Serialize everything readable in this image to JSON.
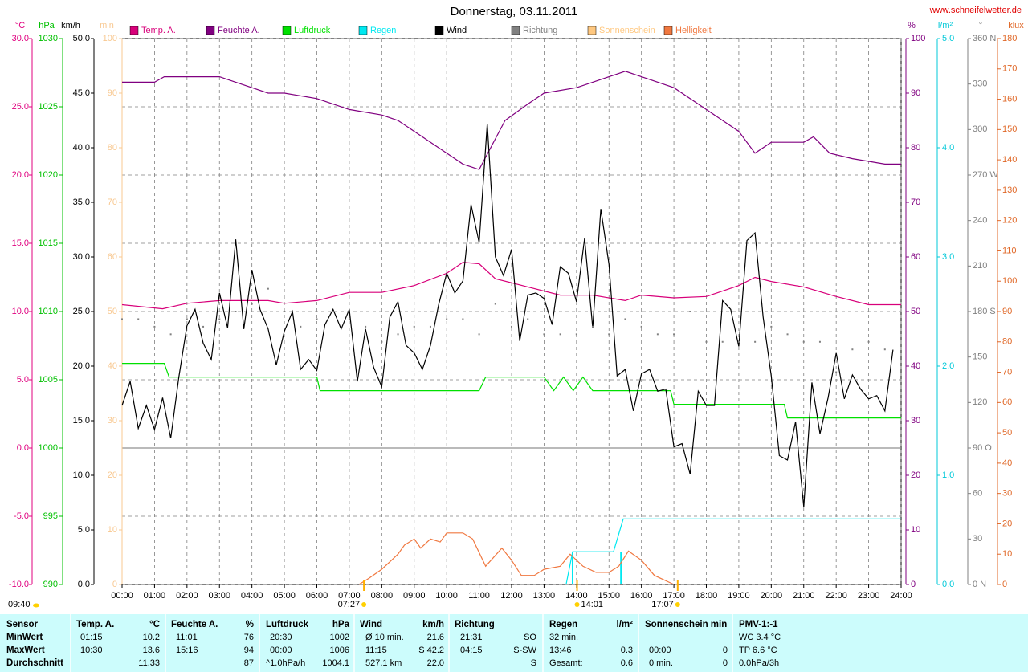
{
  "site": "www.schneifelwetter.de",
  "updated": "09:40",
  "chart_data": {
    "type": "line",
    "title": "Donnerstag, 03.11.2011",
    "grid": true,
    "xlim": [
      0,
      24
    ],
    "xticks": [
      {
        "value": 0,
        "label": "00:00"
      },
      {
        "value": 1,
        "label": "01:00"
      },
      {
        "value": 2,
        "label": "02:00"
      },
      {
        "value": 3,
        "label": "03:00"
      },
      {
        "value": 4,
        "label": "04:00"
      },
      {
        "value": 5,
        "label": "05:00"
      },
      {
        "value": 6,
        "label": "06:00"
      },
      {
        "value": 7,
        "label": "07:00"
      },
      {
        "value": 8,
        "label": "08:00"
      },
      {
        "value": 9,
        "label": "09:00"
      },
      {
        "value": 10,
        "label": "10:00"
      },
      {
        "value": 11,
        "label": "11:00"
      },
      {
        "value": 12,
        "label": "12:00"
      },
      {
        "value": 13,
        "label": "13:00"
      },
      {
        "value": 14,
        "label": "14:00"
      },
      {
        "value": 15,
        "label": "15:00"
      },
      {
        "value": 16,
        "label": "16:00"
      },
      {
        "value": 17,
        "label": "17:00"
      },
      {
        "value": 18,
        "label": "18:00"
      },
      {
        "value": 19,
        "label": "19:00"
      },
      {
        "value": 20,
        "label": "20:00"
      },
      {
        "value": 21,
        "label": "21:00"
      },
      {
        "value": 22,
        "label": "22:00"
      },
      {
        "value": 23,
        "label": "23:00"
      },
      {
        "value": 24,
        "label": "24:00"
      }
    ],
    "axes": {
      "y": {
        "label": "°C",
        "color": "#e0007f",
        "lim": [
          -10,
          30
        ],
        "ticks": [
          {
            "value": -10,
            "label": "-10.0"
          },
          {
            "value": -5,
            "label": "-5.0"
          },
          {
            "value": 0,
            "label": "0.0"
          },
          {
            "value": 5,
            "label": "5.0"
          },
          {
            "value": 10,
            "label": "10.0"
          },
          {
            "value": 15,
            "label": "15.0"
          },
          {
            "value": 20,
            "label": "20.0"
          },
          {
            "value": 25,
            "label": "25.0"
          },
          {
            "value": 30,
            "label": "30.0"
          }
        ]
      },
      "y2": {
        "label": "hPa",
        "color": "#00c000",
        "lim": [
          990,
          1030
        ],
        "ticks": [
          990,
          995,
          1000,
          1005,
          1010,
          1015,
          1020,
          1025,
          1030
        ]
      },
      "y3": {
        "label": "km/h",
        "color": "#000000",
        "lim": [
          0,
          50
        ],
        "ticks": [
          {
            "value": 0,
            "label": "0.0"
          },
          {
            "value": 5,
            "label": "5.0"
          },
          {
            "value": 10,
            "label": "10.0"
          },
          {
            "value": 15,
            "label": "15.0"
          },
          {
            "value": 20,
            "label": "20.0"
          },
          {
            "value": 25,
            "label": "25.0"
          },
          {
            "value": 30,
            "label": "30.0"
          },
          {
            "value": 35,
            "label": "35.0"
          },
          {
            "value": 40,
            "label": "40.0"
          },
          {
            "value": 45,
            "label": "45.0"
          },
          {
            "value": 50,
            "label": "50.0"
          }
        ]
      },
      "y4": {
        "label": "min",
        "color": "#f8c890",
        "lim": [
          0,
          100
        ],
        "ticks": [
          0,
          10,
          20,
          30,
          40,
          50,
          60,
          70,
          80,
          90,
          100
        ]
      },
      "y5": {
        "label": "%",
        "color": "#800080",
        "lim": [
          0,
          100
        ],
        "ticks": [
          0,
          10,
          20,
          30,
          40,
          50,
          60,
          70,
          80,
          90,
          100
        ]
      },
      "y6": {
        "label": "l/m²",
        "color": "#00c8d8",
        "lim": [
          0,
          5
        ],
        "ticks": [
          {
            "value": 0,
            "label": "0.0"
          },
          {
            "value": 1,
            "label": "1.0"
          },
          {
            "value": 2,
            "label": "2.0"
          },
          {
            "value": 3,
            "label": "3.0"
          },
          {
            "value": 4,
            "label": "4.0"
          },
          {
            "value": 5,
            "label": "5.0"
          }
        ]
      },
      "y7": {
        "label": "°",
        "color": "#808080",
        "lim": [
          0,
          360
        ],
        "ticks": [
          {
            "value": 0,
            "label": "0 N"
          },
          30,
          60,
          {
            "value": 90,
            "label": "90 O"
          },
          120,
          150,
          {
            "value": 180,
            "label": "180 S"
          },
          210,
          240,
          {
            "value": 270,
            "label": "270 W"
          },
          300,
          330,
          {
            "value": 360,
            "label": "360 N"
          }
        ]
      },
      "y8": {
        "label": "klux",
        "color": "#e06828",
        "lim": [
          0,
          180
        ],
        "ticks": [
          0,
          10,
          20,
          30,
          40,
          50,
          60,
          70,
          80,
          90,
          100,
          110,
          120,
          130,
          140,
          150,
          160,
          170,
          180
        ]
      }
    },
    "series": [
      {
        "name": "Temp. A.",
        "color": "#d8007a",
        "axis": "y",
        "x": [
          0,
          1.25,
          2,
          3,
          4.5,
          5,
          6,
          7,
          8,
          9,
          10,
          10.5,
          11,
          11.5,
          12.5,
          13.5,
          14.5,
          15.5,
          16,
          17,
          18,
          19,
          19.5,
          20,
          21,
          22,
          23,
          24
        ],
        "values": [
          10.5,
          10.2,
          10.6,
          10.8,
          10.8,
          10.6,
          10.8,
          11.4,
          11.4,
          11.9,
          12.8,
          13.6,
          13.5,
          12.4,
          11.8,
          11.2,
          11.2,
          10.8,
          11.2,
          11.0,
          11.1,
          11.9,
          12.5,
          12.2,
          11.8,
          11.1,
          10.5,
          10.5
        ]
      },
      {
        "name": "Feuchte A.",
        "color": "#800080",
        "axis": "y5",
        "x": [
          0,
          1,
          1.3,
          3,
          3.5,
          4,
          4.5,
          5,
          6,
          7,
          8,
          8.5,
          9,
          10,
          10.5,
          11,
          11.8,
          12.5,
          13,
          14,
          14.5,
          15,
          15.5,
          16,
          17,
          18,
          19,
          19.5,
          20,
          21,
          21.3,
          21.8,
          22.5,
          23.5,
          24
        ],
        "values": [
          92,
          92,
          93,
          93,
          92,
          91,
          90,
          90,
          89,
          87,
          86,
          85,
          83,
          79,
          77,
          76,
          85,
          88,
          90,
          91,
          92,
          93,
          94,
          93,
          91,
          87,
          83,
          79,
          81,
          81,
          82,
          79,
          78,
          77,
          77
        ]
      },
      {
        "name": "Luftdruck",
        "color": "#00e000",
        "axis": "y2",
        "x": [
          0,
          1.3,
          1.45,
          6,
          6.1,
          11,
          11.2,
          13.0,
          13.3,
          13.6,
          13.9,
          14.2,
          14.5,
          16.9,
          17.0,
          20.4,
          20.5,
          24
        ],
        "values": [
          1006.2,
          1006.2,
          1005.2,
          1005.2,
          1004.2,
          1004.2,
          1005.2,
          1005.2,
          1004.2,
          1005.2,
          1004.2,
          1005.2,
          1004.2,
          1004.2,
          1003.2,
          1003.2,
          1002.2,
          1002.2
        ]
      },
      {
        "name": "Regen",
        "color": "#00e8f0",
        "axis": "y6",
        "x": [
          13.68,
          13.88,
          15.14,
          15.44,
          24
        ],
        "values": [
          0,
          0.3,
          0.3,
          0.6,
          0.6
        ],
        "bar_x": [
          13.88,
          15.37
        ],
        "bar_values": [
          0.3,
          0.3
        ]
      },
      {
        "name": "Wind",
        "color": "#000000",
        "axis": "y3",
        "x": [
          0,
          0.25,
          0.5,
          0.75,
          1,
          1.25,
          1.5,
          1.75,
          2,
          2.25,
          2.5,
          2.75,
          3,
          3.25,
          3.5,
          3.75,
          4,
          4.25,
          4.5,
          4.75,
          5,
          5.25,
          5.5,
          5.75,
          6,
          6.25,
          6.5,
          6.75,
          7,
          7.25,
          7.5,
          7.75,
          8,
          8.25,
          8.5,
          8.75,
          9,
          9.25,
          9.5,
          9.75,
          10,
          10.25,
          10.5,
          10.75,
          11,
          11.25,
          11.5,
          11.75,
          12,
          12.25,
          12.5,
          12.75,
          13,
          13.25,
          13.5,
          13.75,
          14,
          14.25,
          14.5,
          14.75,
          15,
          15.25,
          15.5,
          15.75,
          16,
          16.25,
          16.5,
          16.75,
          17,
          17.25,
          17.5,
          17.75,
          18,
          18.25,
          18.5,
          18.75,
          19,
          19.25,
          19.5,
          19.75,
          20,
          20.25,
          20.5,
          20.75,
          21,
          21.25,
          21.5,
          21.75,
          22,
          22.25,
          22.5,
          22.75,
          23,
          23.25,
          23.5,
          23.75
        ],
        "values": [
          16.4,
          18.6,
          14.3,
          16.4,
          14.2,
          17.1,
          13.4,
          19.0,
          23.7,
          25.2,
          22.1,
          20.6,
          26.7,
          23.5,
          31.6,
          23.4,
          28.8,
          25.2,
          23.4,
          20.1,
          23.2,
          25.0,
          19.7,
          20.6,
          19.6,
          23.8,
          25.2,
          23.4,
          25.2,
          18.6,
          23.4,
          19.9,
          18.1,
          24.5,
          25.9,
          21.9,
          21.2,
          19.7,
          21.9,
          25.6,
          28.5,
          26.7,
          27.8,
          34.8,
          31.3,
          42.2,
          30.0,
          28.3,
          30.7,
          22.3,
          26.5,
          26.7,
          26.2,
          23.8,
          29.1,
          28.5,
          25.9,
          31.7,
          23.5,
          34.4,
          29.3,
          19.1,
          19.7,
          15.9,
          19.3,
          19.7,
          17.7,
          17.9,
          12.6,
          12.9,
          10.1,
          17.7,
          16.4,
          16.4,
          26.0,
          25.2,
          21.8,
          31.5,
          32.2,
          24.5,
          19.1,
          11.8,
          11.4,
          14.9,
          7.1,
          18.5,
          13.8,
          17.1,
          21.2,
          17.0,
          19.2,
          17.9,
          17.0,
          17.3,
          15.9,
          21.5
        ]
      },
      {
        "name": "Richtung",
        "color": "#808080",
        "axis": "y7",
        "marker": "dots",
        "x": [
          0,
          0.5,
          1,
          1.5,
          2,
          2.5,
          3,
          3.5,
          4,
          4.5,
          5,
          5.5,
          6,
          6.5,
          7,
          7.5,
          8,
          8.5,
          9,
          9.5,
          10,
          10.5,
          11,
          11.5,
          12,
          12.5,
          13,
          13.5,
          14,
          14.5,
          15,
          15.5,
          16,
          16.5,
          17,
          17.5,
          18,
          18.5,
          19,
          19.5,
          20,
          20.5,
          21,
          21.5,
          22,
          22.5,
          23,
          23.5
        ],
        "values": [
          175,
          175,
          170,
          165,
          175,
          170,
          175,
          180,
          185,
          195,
          180,
          170,
          175,
          180,
          175,
          170,
          160,
          165,
          170,
          170,
          175,
          175,
          165,
          185,
          170,
          175,
          165,
          165,
          165,
          170,
          165,
          175,
          170,
          165,
          165,
          180,
          160,
          160,
          160,
          160,
          170,
          165,
          160,
          160,
          140,
          155,
          160,
          155
        ]
      },
      {
        "name": "Sonnenschein",
        "color": "#ffc880",
        "axis": "y4",
        "x": [],
        "values": []
      },
      {
        "name": "Helligkeit",
        "color": "#f07840",
        "axis": "y8",
        "x": [
          7.3,
          7.6,
          8,
          8.3,
          8.5,
          8.7,
          9,
          9.2,
          9.5,
          9.8,
          10,
          10.5,
          10.8,
          11.2,
          11.7,
          12,
          12.3,
          12.7,
          13,
          13.5,
          13.8,
          14.2,
          14.6,
          15,
          15.3,
          15.6,
          16,
          16.4,
          17
        ],
        "values": [
          0,
          2,
          5,
          8,
          10,
          13,
          15,
          12,
          15,
          14,
          17,
          17,
          15,
          6,
          12,
          8,
          3,
          3,
          5,
          6,
          10,
          6,
          4,
          4,
          6,
          11,
          8,
          3,
          0
        ]
      }
    ],
    "annotations": [
      {
        "x": 7.45,
        "label": "07:27"
      },
      {
        "x": 14.017,
        "label": "14:01"
      },
      {
        "x": 17.117,
        "label": "17:07"
      }
    ]
  },
  "stats": {
    "header": [
      "Sensor",
      "Temp. A.",
      "°C",
      "Feuchte A.",
      "%",
      "Luftdruck",
      "hPa",
      "Wind",
      "km/h",
      "Richtung",
      null,
      "Regen",
      "l/m²",
      "Sonnenschein min",
      null,
      "PMV-1:-1"
    ],
    "rows": [
      [
        "MinWert",
        "01:15",
        "10.2",
        "11:01",
        "76",
        "20:30",
        "1002",
        "Ø 10 min.",
        "21.6",
        "21:31",
        "SO",
        "32 min.",
        null,
        null,
        null,
        "WC 3.4 °C"
      ],
      [
        "MaxWert",
        "10:30",
        "13.6",
        "15:16",
        "94",
        "00:00",
        "1006",
        "11:15",
        "S 42.2",
        "04:15",
        "S-SW",
        "13:46",
        "0.3",
        "00:00",
        "0",
        "TP 6.6 °C"
      ],
      [
        "Durchschnitt",
        null,
        "11.33",
        null,
        "87",
        "^1.0hPa/h",
        "1004.1",
        "527.1 km",
        "22.0",
        null,
        "S",
        "Gesamt:",
        "0.6",
        "0 min.",
        "0",
        "0.0hPa/3h"
      ]
    ]
  }
}
